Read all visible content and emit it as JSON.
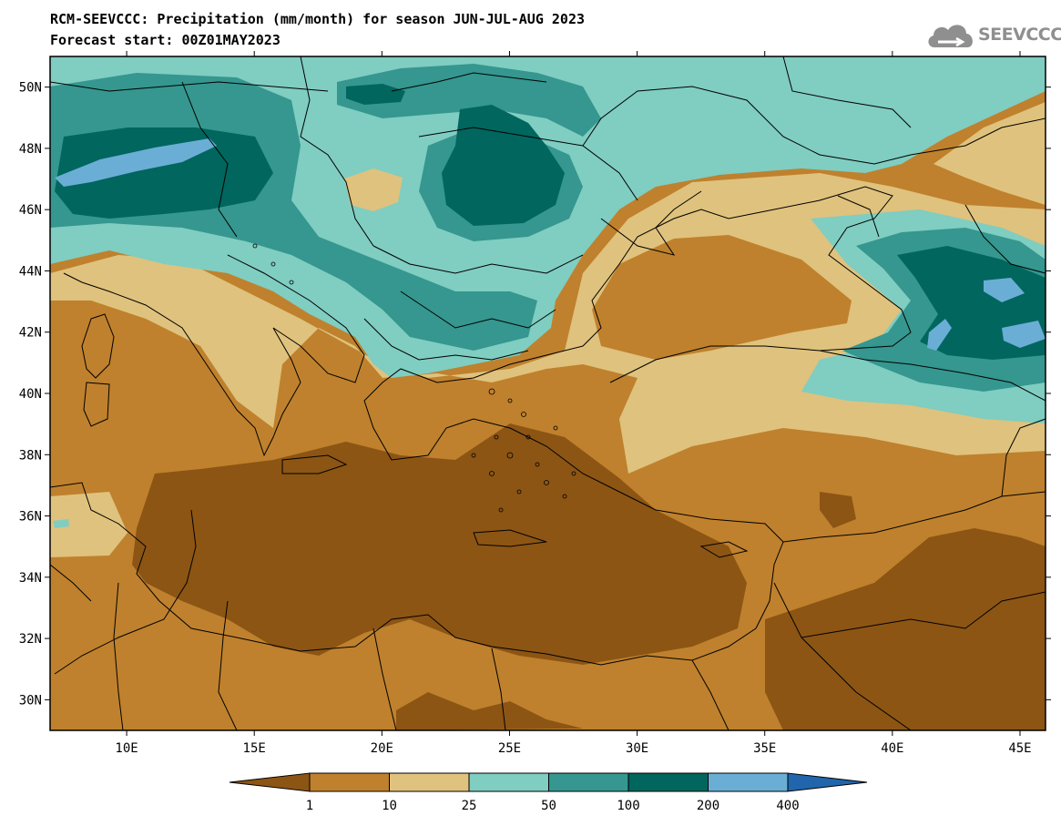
{
  "title": {
    "line1": "RCM-SEEVCCC: Precipitation (mm/month) for season JUN-JUL-AUG 2023",
    "line2": "Forecast start: 00Z01MAY2023"
  },
  "logo": {
    "text": "SEEVCCC",
    "icon": "cloud-icon"
  },
  "map": {
    "lat_range": [
      29,
      51
    ],
    "lon_range": [
      7,
      46
    ],
    "lat_ticks": [
      "50N",
      "48N",
      "46N",
      "44N",
      "42N",
      "40N",
      "38N",
      "36N",
      "34N",
      "32N",
      "30N"
    ],
    "lon_ticks": [
      "10E",
      "15E",
      "20E",
      "25E",
      "30E",
      "35E",
      "40E",
      "45E"
    ]
  },
  "colorbar": {
    "labels": [
      "1",
      "10",
      "25",
      "50",
      "100",
      "200",
      "400"
    ],
    "colors": [
      "#8c5514",
      "#bf812d",
      "#dfc27d",
      "#80cdc1",
      "#35978f",
      "#01665e",
      "#6aaed6",
      "#2166ac"
    ]
  }
}
